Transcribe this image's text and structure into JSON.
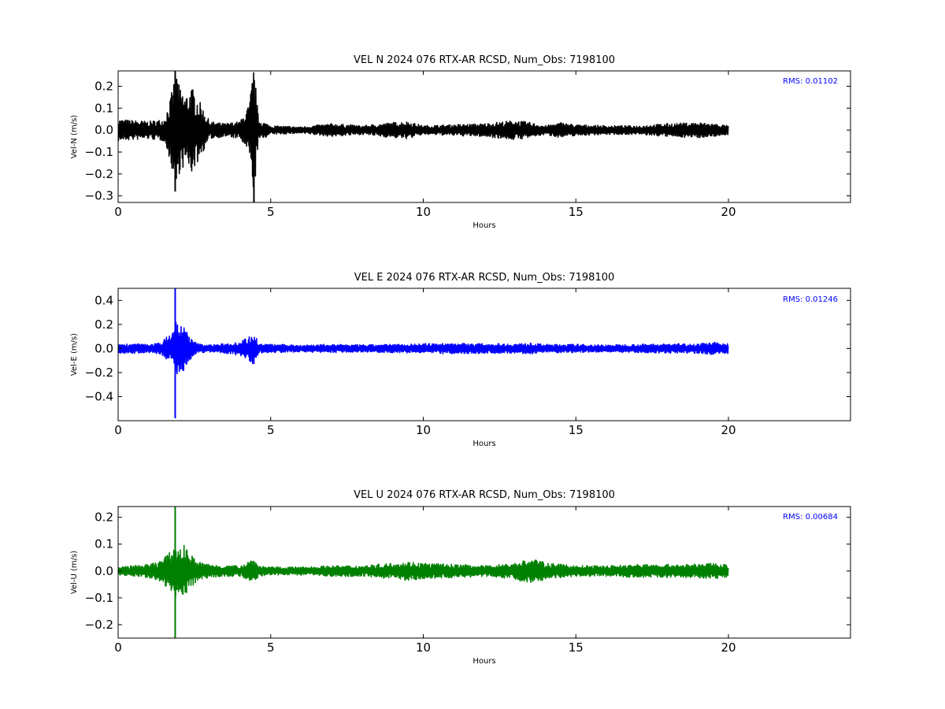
{
  "chart_data": [
    {
      "type": "line",
      "title": "VEL N 2024 076 RTX-AR  RCSD, Num_Obs: 7198100",
      "xlabel": "Hours",
      "ylabel": "Vel-N (m/s)",
      "xlim": [
        0,
        24
      ],
      "ylim": [
        -0.33,
        0.27
      ],
      "xticks": [
        0,
        5,
        10,
        15,
        20
      ],
      "xtick_labels": [
        "0",
        "5",
        "10",
        "15",
        "20"
      ],
      "yticks": [
        -0.3,
        -0.2,
        -0.1,
        0.0,
        0.1,
        0.2
      ],
      "ytick_labels": [
        "−0.3",
        "−0.2",
        "−0.1",
        "0.0",
        "0.1",
        "0.2"
      ],
      "rms_text": "RMS:  0.01102",
      "color": "#000000",
      "series": [
        {
          "x": [
            0,
            0.5,
            1,
            1.5,
            1.7,
            1.8,
            1.9,
            2.0,
            2.2,
            2.4,
            2.6,
            3.0,
            3.5,
            4.0,
            4.3,
            4.45,
            4.6,
            5,
            6,
            7,
            8,
            9,
            9.5,
            10,
            11,
            12,
            13,
            13.5,
            14,
            14.5,
            15,
            16,
            17,
            18,
            19,
            19.5,
            20
          ],
          "envelope": [
            0.05,
            0.045,
            0.04,
            0.05,
            0.14,
            0.2,
            0.3,
            0.2,
            0.16,
            0.2,
            0.15,
            0.04,
            0.03,
            0.04,
            0.12,
            0.3,
            0.05,
            0.02,
            0.015,
            0.03,
            0.02,
            0.035,
            0.04,
            0.02,
            0.025,
            0.03,
            0.045,
            0.035,
            0.02,
            0.035,
            0.025,
            0.02,
            0.02,
            0.03,
            0.035,
            0.03,
            0.02
          ]
        }
      ],
      "spikes": [
        {
          "x": 1.87,
          "min": -0.28,
          "max": 0.27
        },
        {
          "x": 4.45,
          "min": -0.33,
          "max": 0.22
        }
      ]
    },
    {
      "type": "line",
      "title": "VEL E 2024 076 RTX-AR  RCSD, Num_Obs: 7198100",
      "xlabel": "Hours",
      "ylabel": "Vel-E (m/s)",
      "xlim": [
        0,
        24
      ],
      "ylim": [
        -0.6,
        0.5
      ],
      "xticks": [
        0,
        5,
        10,
        15,
        20
      ],
      "xtick_labels": [
        "0",
        "5",
        "10",
        "15",
        "20"
      ],
      "yticks": [
        -0.4,
        -0.2,
        0.0,
        0.2,
        0.4
      ],
      "ytick_labels": [
        "−0.4",
        "−0.2",
        "0.0",
        "0.2",
        "0.4"
      ],
      "rms_text": "RMS:  0.01246",
      "color": "#0000ff",
      "series": [
        {
          "x": [
            0,
            0.5,
            1,
            1.4,
            1.6,
            1.8,
            1.9,
            2.0,
            2.2,
            2.4,
            2.6,
            3.0,
            3.5,
            4.0,
            4.3,
            4.45,
            4.6,
            5,
            6,
            7,
            8,
            9,
            10,
            11,
            12,
            13,
            13.5,
            14,
            15,
            16,
            17,
            18,
            19,
            19.5,
            20
          ],
          "envelope": [
            0.04,
            0.04,
            0.035,
            0.05,
            0.1,
            0.15,
            0.25,
            0.2,
            0.18,
            0.08,
            0.04,
            0.03,
            0.04,
            0.06,
            0.1,
            0.16,
            0.04,
            0.035,
            0.03,
            0.035,
            0.03,
            0.035,
            0.04,
            0.045,
            0.04,
            0.04,
            0.045,
            0.035,
            0.035,
            0.03,
            0.035,
            0.04,
            0.04,
            0.05,
            0.045
          ]
        }
      ],
      "spikes": [
        {
          "x": 1.87,
          "min": -0.58,
          "max": 0.5
        }
      ]
    },
    {
      "type": "line",
      "title": "VEL U 2024 076 RTX-AR  RCSD, Num_Obs: 7198100",
      "xlabel": "Hours",
      "ylabel": "Vel-U (m/s)",
      "xlim": [
        0,
        24
      ],
      "ylim": [
        -0.25,
        0.24
      ],
      "xticks": [
        0,
        5,
        10,
        15,
        20
      ],
      "xtick_labels": [
        "0",
        "5",
        "10",
        "15",
        "20"
      ],
      "yticks": [
        -0.2,
        -0.1,
        0.0,
        0.1,
        0.2
      ],
      "ytick_labels": [
        "−0.2",
        "−0.1",
        "0.0",
        "0.1",
        "0.2"
      ],
      "rms_text": "RMS:  0.00684",
      "color": "#008000",
      "series": [
        {
          "x": [
            0,
            0.5,
            1,
            1.3,
            1.6,
            1.8,
            1.9,
            2.0,
            2.2,
            2.4,
            2.6,
            3.0,
            3.5,
            4.0,
            4.45,
            4.6,
            5,
            6,
            7,
            8,
            9,
            9.5,
            10,
            11,
            12,
            13,
            13.3,
            13.7,
            14,
            15,
            16,
            17,
            18,
            19,
            19.5,
            20
          ],
          "envelope": [
            0.015,
            0.02,
            0.025,
            0.035,
            0.06,
            0.08,
            0.1,
            0.08,
            0.1,
            0.06,
            0.035,
            0.025,
            0.02,
            0.02,
            0.05,
            0.02,
            0.015,
            0.015,
            0.02,
            0.02,
            0.03,
            0.035,
            0.03,
            0.025,
            0.02,
            0.03,
            0.04,
            0.045,
            0.03,
            0.02,
            0.02,
            0.025,
            0.025,
            0.025,
            0.03,
            0.025
          ]
        }
      ],
      "spikes": [
        {
          "x": 1.87,
          "min": -0.25,
          "max": 0.24
        }
      ]
    }
  ]
}
